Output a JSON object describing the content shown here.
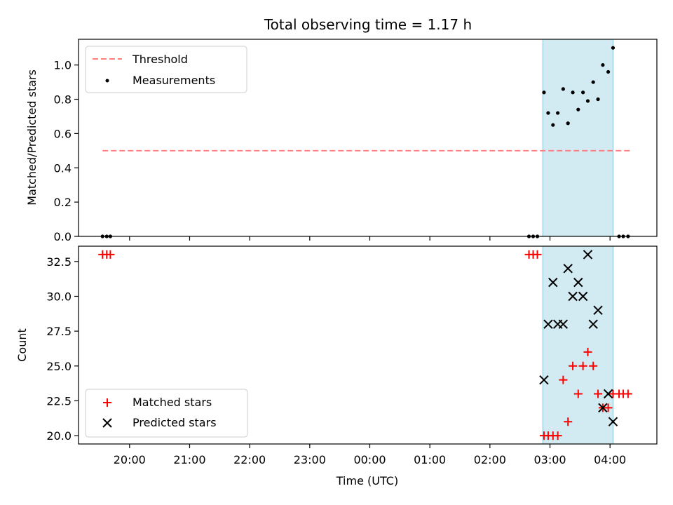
{
  "chart_data": {
    "title": "Total observing time = 1.17 h",
    "x_axis": {
      "label": "Time (UTC)",
      "ticks": [
        "20:00",
        "21:00",
        "22:00",
        "23:00",
        "00:00",
        "01:00",
        "02:00",
        "03:00",
        "04:00"
      ],
      "tick_hours": [
        20,
        21,
        22,
        23,
        24,
        25,
        26,
        27,
        28
      ],
      "range_hours": [
        19.15,
        28.78
      ],
      "note": "hours since 00:00 of first day; values >=24 are after midnight"
    },
    "observing_window_hours": [
      26.88,
      28.05
    ],
    "observing_window_color": "#add8e6",
    "panels": [
      {
        "type": "scatter",
        "ylabel": "Matched/Predicted stars",
        "ylim": [
          0,
          1.15
        ],
        "yticks": [
          "0.0",
          "0.2",
          "0.4",
          "0.6",
          "0.8",
          "1.0"
        ],
        "ytick_values": [
          0,
          0.2,
          0.4,
          0.6,
          0.8,
          1.0
        ],
        "legend_position": "upper left",
        "threshold": {
          "name": "Threshold",
          "value": 0.5,
          "x_range": [
            19.55,
            28.35
          ],
          "color": "#ff7f7f"
        },
        "series": [
          {
            "name": "Measurements",
            "color": "#000000",
            "marker": "dot",
            "points": [
              [
                19.55,
                0.0
              ],
              [
                19.62,
                0.0
              ],
              [
                19.68,
                0.0
              ],
              [
                26.65,
                0.0
              ],
              [
                26.72,
                0.0
              ],
              [
                26.79,
                0.0
              ],
              [
                26.9,
                0.84
              ],
              [
                26.97,
                0.72
              ],
              [
                27.05,
                0.65
              ],
              [
                27.13,
                0.72
              ],
              [
                27.22,
                0.86
              ],
              [
                27.3,
                0.66
              ],
              [
                27.38,
                0.84
              ],
              [
                27.47,
                0.74
              ],
              [
                27.55,
                0.84
              ],
              [
                27.63,
                0.79
              ],
              [
                27.72,
                0.9
              ],
              [
                27.8,
                0.8
              ],
              [
                27.88,
                1.0
              ],
              [
                27.97,
                0.96
              ],
              [
                28.05,
                1.1
              ],
              [
                28.15,
                0.0
              ],
              [
                28.22,
                0.0
              ],
              [
                28.3,
                0.0
              ]
            ]
          }
        ]
      },
      {
        "type": "scatter",
        "ylabel": "Count",
        "ylim": [
          19.4,
          33.6
        ],
        "yticks": [
          "20.0",
          "22.5",
          "25.0",
          "27.5",
          "30.0",
          "32.5"
        ],
        "ytick_values": [
          20,
          22.5,
          25,
          27.5,
          30,
          32.5
        ],
        "legend_position": "lower left",
        "series": [
          {
            "name": "Matched stars",
            "color": "#ff0000",
            "marker": "plus",
            "points": [
              [
                19.55,
                33
              ],
              [
                19.62,
                33
              ],
              [
                19.68,
                33
              ],
              [
                26.65,
                33
              ],
              [
                26.72,
                33
              ],
              [
                26.79,
                33
              ],
              [
                26.9,
                20
              ],
              [
                26.97,
                20
              ],
              [
                27.05,
                20
              ],
              [
                27.13,
                20
              ],
              [
                27.22,
                24
              ],
              [
                27.3,
                21
              ],
              [
                27.38,
                25
              ],
              [
                27.47,
                23
              ],
              [
                27.55,
                25
              ],
              [
                27.63,
                26
              ],
              [
                27.72,
                25
              ],
              [
                27.8,
                23
              ],
              [
                27.88,
                22
              ],
              [
                27.97,
                22
              ],
              [
                28.05,
                23
              ],
              [
                28.15,
                23
              ],
              [
                28.22,
                23
              ],
              [
                28.3,
                23
              ]
            ]
          },
          {
            "name": "Predicted stars",
            "color": "#000000",
            "marker": "x",
            "points": [
              [
                26.9,
                24
              ],
              [
                26.97,
                28
              ],
              [
                27.05,
                31
              ],
              [
                27.13,
                28
              ],
              [
                27.22,
                28
              ],
              [
                27.3,
                32
              ],
              [
                27.38,
                30
              ],
              [
                27.47,
                31
              ],
              [
                27.55,
                30
              ],
              [
                27.63,
                33
              ],
              [
                27.72,
                28
              ],
              [
                27.8,
                29
              ],
              [
                27.88,
                22
              ],
              [
                27.97,
                23
              ],
              [
                28.05,
                21
              ]
            ]
          }
        ]
      }
    ]
  }
}
